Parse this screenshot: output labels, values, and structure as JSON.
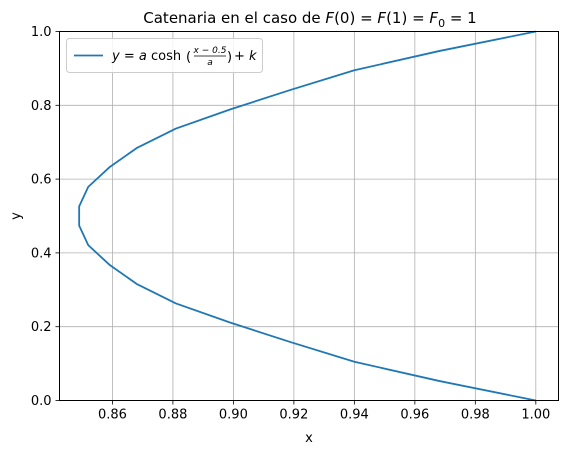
{
  "chart_data": {
    "type": "line",
    "title": "Catenaria en el caso de F(0) = F(1) = F₀ = 1",
    "title_parts": {
      "prefix": "Catenaria en el caso de ",
      "F": "F",
      "mid1": "(0) = ",
      "mid2": "(1) = ",
      "sub": "0",
      "end": " = 1"
    },
    "xlabel": "x",
    "ylabel": "y",
    "xlim": [
      0.8425,
      1.0075
    ],
    "ylim": [
      0.0,
      1.0
    ],
    "xticks": [
      "0.86",
      "0.88",
      "0.90",
      "0.92",
      "0.94",
      "0.96",
      "0.98",
      "1.00"
    ],
    "yticks": [
      "0.0",
      "0.2",
      "0.4",
      "0.6",
      "0.8",
      "1.0"
    ],
    "grid": true,
    "legend_position": "top-left",
    "legend_parts": {
      "lhs": "y = a",
      "func": "cosh",
      "num": "x − 0.5",
      "den": "a",
      "rhs": "+ k"
    },
    "colors": {
      "series": "#1f77b4",
      "grid": "#b0b0b0",
      "axes": "#000000"
    },
    "series": [
      {
        "x": [
          1.0,
          0.968,
          0.94,
          0.919,
          0.899,
          0.881,
          0.868,
          0.859,
          0.852,
          0.849,
          0.849,
          0.852,
          0.859,
          0.868,
          0.881,
          0.899,
          0.919,
          0.94,
          0.968,
          1.0
        ],
        "y": [
          0.0,
          0.053,
          0.105,
          0.158,
          0.211,
          0.263,
          0.316,
          0.368,
          0.421,
          0.474,
          0.526,
          0.579,
          0.632,
          0.684,
          0.737,
          0.789,
          0.842,
          0.895,
          0.947,
          1.0
        ]
      }
    ]
  }
}
